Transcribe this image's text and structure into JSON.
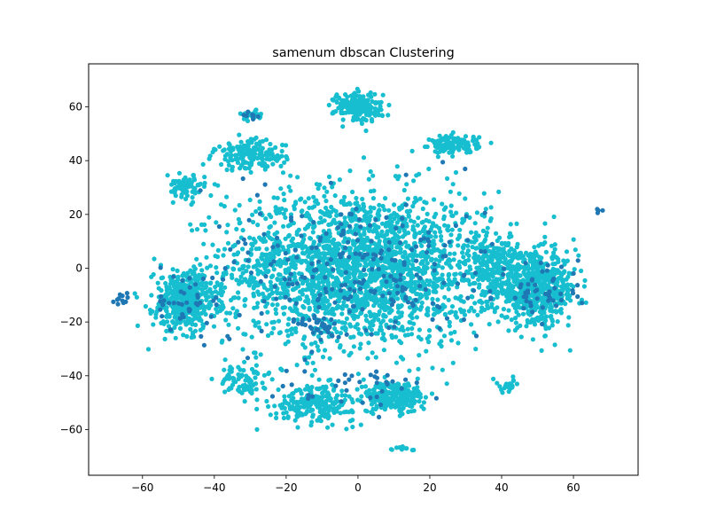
{
  "chart_data": {
    "type": "scatter",
    "title": "samenum dbscan Clustering",
    "xlabel": "",
    "ylabel": "",
    "xlim": [
      -75,
      78
    ],
    "ylim": [
      -77,
      76
    ],
    "xticks": [
      -60,
      -40,
      -20,
      0,
      20,
      40,
      60
    ],
    "yticks": [
      -60,
      -40,
      -20,
      0,
      20,
      40,
      60
    ],
    "xtick_labels": [
      "−60",
      "−40",
      "−20",
      "0",
      "20",
      "40",
      "60"
    ],
    "ytick_labels": [
      "−60",
      "−40",
      "−20",
      "0",
      "20",
      "40",
      "60"
    ],
    "grid": false,
    "legend": "none",
    "series": [
      {
        "color": "#17becf",
        "regions": [
          {
            "center": [
              0,
              0
            ],
            "spread": [
              33,
              26
            ],
            "count": 2200
          },
          {
            "center": [
              -48,
              -12
            ],
            "spread": [
              8,
              10
            ],
            "count": 420
          },
          {
            "center": [
              50,
              -8
            ],
            "spread": [
              10,
              12
            ],
            "count": 560
          },
          {
            "center": [
              38,
              0
            ],
            "spread": [
              7,
              12
            ],
            "count": 240
          },
          {
            "center": [
              0,
              60
            ],
            "spread": [
              6,
              5
            ],
            "count": 200
          },
          {
            "center": [
              27,
              46
            ],
            "spread": [
              6,
              3
            ],
            "count": 130
          },
          {
            "center": [
              -30,
              42
            ],
            "spread": [
              9,
              5
            ],
            "count": 160
          },
          {
            "center": [
              -48,
              30
            ],
            "spread": [
              5,
              4
            ],
            "count": 80
          },
          {
            "center": [
              10,
              -48
            ],
            "spread": [
              8,
              5
            ],
            "count": 240
          },
          {
            "center": [
              -12,
              -50
            ],
            "spread": [
              10,
              6
            ],
            "count": 230
          },
          {
            "center": [
              -32,
              -42
            ],
            "spread": [
              6,
              5
            ],
            "count": 80
          },
          {
            "center": [
              -30,
              57
            ],
            "spread": [
              3,
              1.5
            ],
            "count": 30
          },
          {
            "center": [
              12,
              -67
            ],
            "spread": [
              3,
              1.5
            ],
            "count": 12
          },
          {
            "center": [
              42,
              -44
            ],
            "spread": [
              3,
              2
            ],
            "count": 22
          }
        ]
      },
      {
        "color": "#1f77b4",
        "regions": [
          {
            "center": [
              0,
              0
            ],
            "spread": [
              32,
              26
            ],
            "count": 230
          },
          {
            "center": [
              -48,
              -12
            ],
            "spread": [
              10,
              10
            ],
            "count": 40
          },
          {
            "center": [
              52,
              -8
            ],
            "spread": [
              10,
              12
            ],
            "count": 50
          },
          {
            "center": [
              -10,
              -22
            ],
            "spread": [
              6,
              5
            ],
            "count": 35
          },
          {
            "center": [
              0,
              -45
            ],
            "spread": [
              20,
              8
            ],
            "count": 35
          },
          {
            "center": [
              -30,
              57
            ],
            "spread": [
              3,
              1.5
            ],
            "count": 8
          },
          {
            "center": [
              67,
              22
            ],
            "spread": [
              1.5,
              2
            ],
            "count": 4
          },
          {
            "center": [
              -65,
              -12
            ],
            "spread": [
              2,
              4
            ],
            "count": 10
          }
        ]
      }
    ]
  }
}
